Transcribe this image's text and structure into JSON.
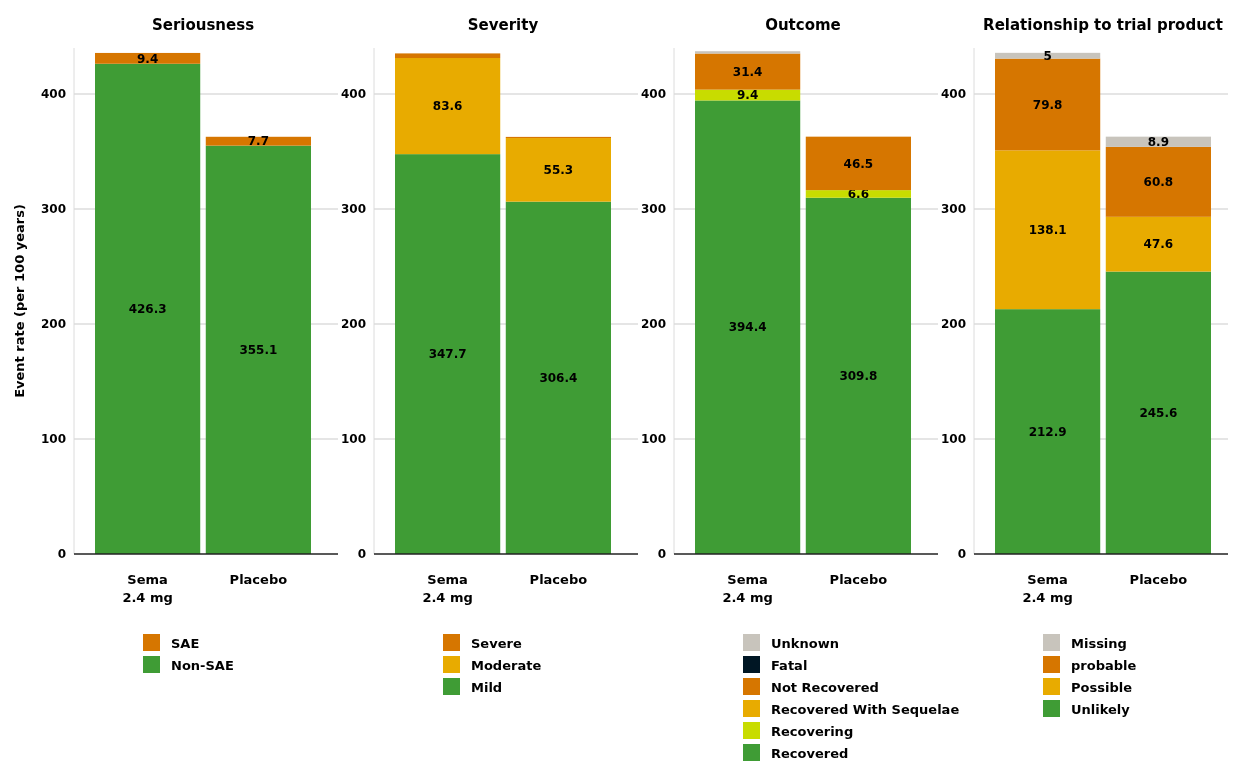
{
  "chart_data": [
    {
      "type": "bar",
      "stacked": true,
      "title": "Seriousness",
      "ylabel": "Event rate (per 100 years)",
      "categories": [
        "Sema\n2.4 mg",
        "Placebo"
      ],
      "ylim": [
        0,
        440
      ],
      "yticks": [
        0,
        100,
        200,
        300,
        400
      ],
      "grid": "y",
      "legend": "bottom",
      "series": [
        {
          "name": "Non-SAE",
          "color": "#3f9c35",
          "values": [
            426.3,
            355.1
          ],
          "value_labels": [
            "426.3",
            "355.1"
          ]
        },
        {
          "name": "SAE",
          "color": "#d67600",
          "values": [
            9.4,
            7.7
          ],
          "value_labels": [
            "9.4",
            "7.7"
          ]
        }
      ]
    },
    {
      "type": "bar",
      "stacked": true,
      "title": "Severity",
      "categories": [
        "Sema\n2.4 mg",
        "Placebo"
      ],
      "ylim": [
        0,
        440
      ],
      "yticks": [
        0,
        100,
        200,
        300,
        400
      ],
      "grid": "y",
      "legend": "bottom",
      "series": [
        {
          "name": "Mild",
          "color": "#3f9c35",
          "values": [
            347.7,
            306.4
          ],
          "value_labels": [
            "347.7",
            "306.4"
          ]
        },
        {
          "name": "Moderate",
          "color": "#e8ab00",
          "values": [
            83.6,
            55.3
          ],
          "value_labels": [
            "83.6",
            "55.3"
          ]
        },
        {
          "name": "Severe",
          "color": "#d67600",
          "values": [
            4,
            1
          ],
          "value_labels": [
            null,
            null
          ]
        }
      ]
    },
    {
      "type": "bar",
      "stacked": true,
      "title": "Outcome",
      "categories": [
        "Sema\n2.4 mg",
        "Placebo"
      ],
      "ylim": [
        0,
        440
      ],
      "yticks": [
        0,
        100,
        200,
        300,
        400
      ],
      "grid": "y",
      "legend": "bottom",
      "series": [
        {
          "name": "Recovered",
          "color": "#3f9c35",
          "values": [
            394.4,
            309.8
          ],
          "value_labels": [
            "394.4",
            "309.8"
          ]
        },
        {
          "name": "Recovering",
          "color": "#c8dc00",
          "values": [
            9.4,
            6.6
          ],
          "value_labels": [
            "9.4",
            "6.6"
          ]
        },
        {
          "name": "Recovered With Sequelae",
          "color": "#e8ab00",
          "values": [
            0,
            0
          ],
          "value_labels": [
            null,
            null
          ]
        },
        {
          "name": "Not Recovered",
          "color": "#d67600",
          "values": [
            31.4,
            46.5
          ],
          "value_labels": [
            "31.4",
            "46.5"
          ]
        },
        {
          "name": "Fatal",
          "color": "#001624",
          "values": [
            0,
            0
          ],
          "value_labels": [
            null,
            null
          ]
        },
        {
          "name": "Unknown",
          "color": "#c8c4bc",
          "values": [
            2,
            0
          ],
          "value_labels": [
            null,
            null
          ]
        }
      ]
    },
    {
      "type": "bar",
      "stacked": true,
      "title": "Relationship to trial product",
      "categories": [
        "Sema\n2.4 mg",
        "Placebo"
      ],
      "ylim": [
        0,
        440
      ],
      "yticks": [
        0,
        100,
        200,
        300,
        400
      ],
      "grid": "y",
      "legend": "bottom",
      "series": [
        {
          "name": "Unlikely",
          "color": "#3f9c35",
          "values": [
            212.9,
            245.6
          ],
          "value_labels": [
            "212.9",
            "245.6"
          ]
        },
        {
          "name": "Possible",
          "color": "#e8ab00",
          "values": [
            138.1,
            47.6
          ],
          "value_labels": [
            "138.1",
            "47.6"
          ]
        },
        {
          "name": "probable",
          "color": "#d67600",
          "values": [
            79.8,
            60.8
          ],
          "value_labels": [
            "79.8",
            "60.8"
          ]
        },
        {
          "name": "Missing",
          "color": "#c8c4bc",
          "values": [
            5,
            8.9
          ],
          "value_labels": [
            "5",
            "8.9"
          ]
        }
      ]
    }
  ]
}
